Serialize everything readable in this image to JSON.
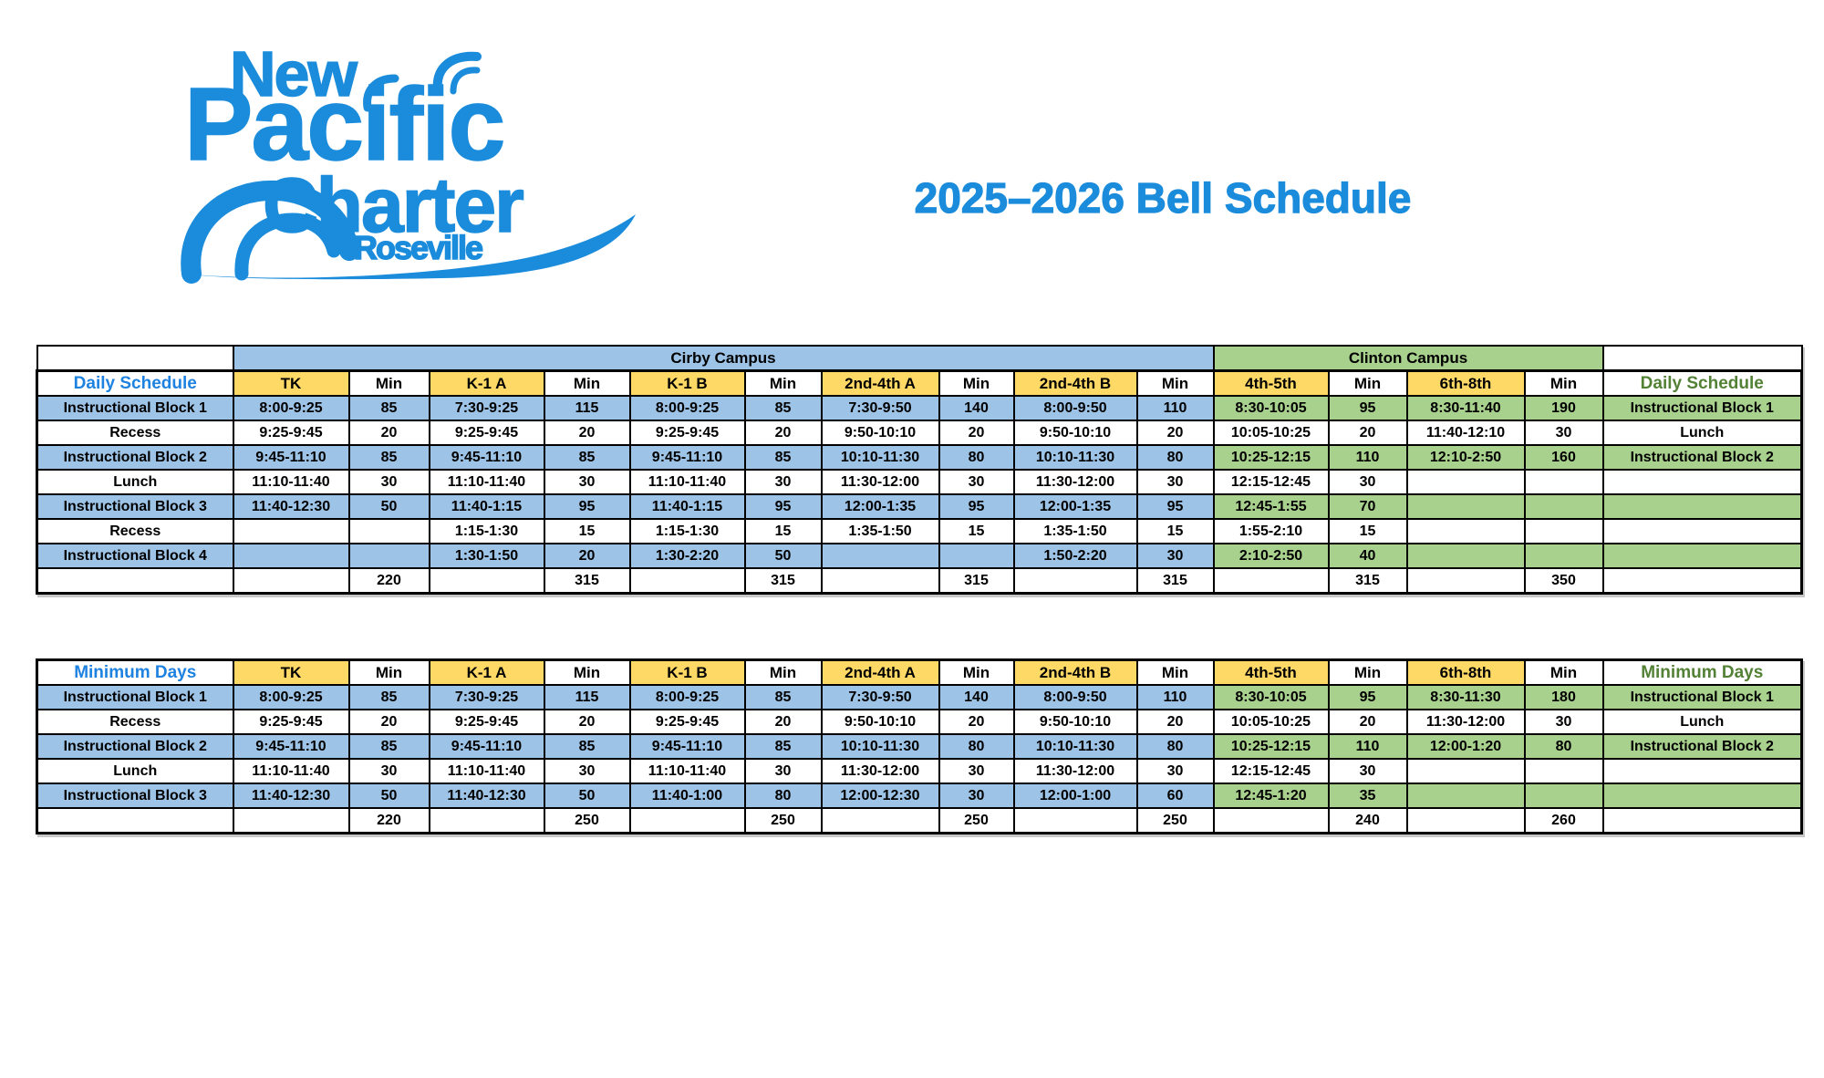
{
  "logo": {
    "line1": "New",
    "line2": "Pacific",
    "line3": "Charter",
    "sub": "Roseville"
  },
  "title": "2025–2026 Bell Schedule",
  "colors": {
    "brand_blue": "#1A8CDB",
    "label_blue": "#1E82E0",
    "label_green": "#538135",
    "cell_blue": "#9DC3E6",
    "cell_green": "#A9D18E",
    "cell_yellow": "#FFD966",
    "border_black": "#000000"
  },
  "campus_header": {
    "cirby": "Cirby Campus",
    "clinton": "Clinton Campus"
  },
  "tables": [
    {
      "name": "daily-schedule-table",
      "title_left": "Daily Schedule",
      "title_right": "Daily Schedule",
      "campus_row": true,
      "columns": [
        "TK",
        "Min",
        "K-1 A",
        "Min",
        "K-1 B",
        "Min",
        "2nd-4th A",
        "Min",
        "2nd-4th B",
        "Min",
        "4th-5th",
        "Min",
        "6th-8th",
        "Min"
      ],
      "rows": [
        {
          "label": "Instructional Block 1",
          "shade": true,
          "right_label": "Instructional Block 1",
          "cells": [
            "8:00-9:25",
            "85",
            "7:30-9:25",
            "115",
            "8:00-9:25",
            "85",
            "7:30-9:50",
            "140",
            "8:00-9:50",
            "110",
            "8:30-10:05",
            "95",
            "8:30-11:40",
            "190"
          ]
        },
        {
          "label": "Recess",
          "shade": false,
          "right_label": "Lunch",
          "cells": [
            "9:25-9:45",
            "20",
            "9:25-9:45",
            "20",
            "9:25-9:45",
            "20",
            "9:50-10:10",
            "20",
            "9:50-10:10",
            "20",
            "10:05-10:25",
            "20",
            "11:40-12:10",
            "30"
          ]
        },
        {
          "label": "Instructional Block 2",
          "shade": true,
          "right_label": "Instructional Block 2",
          "cells": [
            "9:45-11:10",
            "85",
            "9:45-11:10",
            "85",
            "9:45-11:10",
            "85",
            "10:10-11:30",
            "80",
            "10:10-11:30",
            "80",
            "10:25-12:15",
            "110",
            "12:10-2:50",
            "160"
          ]
        },
        {
          "label": "Lunch",
          "shade": false,
          "right_label": "",
          "cells": [
            "11:10-11:40",
            "30",
            "11:10-11:40",
            "30",
            "11:10-11:40",
            "30",
            "11:30-12:00",
            "30",
            "11:30-12:00",
            "30",
            "12:15-12:45",
            "30",
            "",
            ""
          ]
        },
        {
          "label": "Instructional Block 3",
          "shade": true,
          "right_label": "",
          "cells": [
            "11:40-12:30",
            "50",
            "11:40-1:15",
            "95",
            "11:40-1:15",
            "95",
            "12:00-1:35",
            "95",
            "12:00-1:35",
            "95",
            "12:45-1:55",
            "70",
            "",
            ""
          ]
        },
        {
          "label": "Recess",
          "shade": false,
          "right_label": "",
          "cells": [
            "",
            "",
            "1:15-1:30",
            "15",
            "1:15-1:30",
            "15",
            "1:35-1:50",
            "15",
            "1:35-1:50",
            "15",
            "1:55-2:10",
            "15",
            "",
            ""
          ]
        },
        {
          "label": "Instructional Block 4",
          "shade": true,
          "right_label": "",
          "cells": [
            "",
            "",
            "1:30-1:50",
            "20",
            "1:30-2:20",
            "50",
            "",
            "",
            "1:50-2:20",
            "30",
            "2:10-2:50",
            "40",
            "",
            ""
          ]
        },
        {
          "label": "",
          "shade": false,
          "right_label": "",
          "cells": [
            "",
            "220",
            "",
            "315",
            "",
            "315",
            "",
            "315",
            "",
            "315",
            "",
            "315",
            "",
            "350"
          ]
        }
      ]
    },
    {
      "name": "minimum-days-table",
      "title_left": "Minimum Days",
      "title_right": "Minimum Days",
      "campus_row": false,
      "columns": [
        "TK",
        "Min",
        "K-1 A",
        "Min",
        "K-1 B",
        "Min",
        "2nd-4th A",
        "Min",
        "2nd-4th B",
        "Min",
        "4th-5th",
        "Min",
        "6th-8th",
        "Min"
      ],
      "rows": [
        {
          "label": "Instructional Block 1",
          "shade": true,
          "right_label": "Instructional Block 1",
          "cells": [
            "8:00-9:25",
            "85",
            "7:30-9:25",
            "115",
            "8:00-9:25",
            "85",
            "7:30-9:50",
            "140",
            "8:00-9:50",
            "110",
            "8:30-10:05",
            "95",
            "8:30-11:30",
            "180"
          ]
        },
        {
          "label": "Recess",
          "shade": false,
          "right_label": "Lunch",
          "cells": [
            "9:25-9:45",
            "20",
            "9:25-9:45",
            "20",
            "9:25-9:45",
            "20",
            "9:50-10:10",
            "20",
            "9:50-10:10",
            "20",
            "10:05-10:25",
            "20",
            "11:30-12:00",
            "30"
          ]
        },
        {
          "label": "Instructional Block 2",
          "shade": true,
          "right_label": "Instructional Block 2",
          "cells": [
            "9:45-11:10",
            "85",
            "9:45-11:10",
            "85",
            "9:45-11:10",
            "85",
            "10:10-11:30",
            "80",
            "10:10-11:30",
            "80",
            "10:25-12:15",
            "110",
            "12:00-1:20",
            "80"
          ]
        },
        {
          "label": "Lunch",
          "shade": false,
          "right_label": "",
          "cells": [
            "11:10-11:40",
            "30",
            "11:10-11:40",
            "30",
            "11:10-11:40",
            "30",
            "11:30-12:00",
            "30",
            "11:30-12:00",
            "30",
            "12:15-12:45",
            "30",
            "",
            ""
          ]
        },
        {
          "label": "Instructional Block 3",
          "shade": true,
          "right_label": "",
          "cells": [
            "11:40-12:30",
            "50",
            "11:40-12:30",
            "50",
            "11:40-1:00",
            "80",
            "12:00-12:30",
            "30",
            "12:00-1:00",
            "60",
            "12:45-1:20",
            "35",
            "",
            ""
          ]
        },
        {
          "label": "",
          "shade": false,
          "right_label": "",
          "cells": [
            "",
            "220",
            "",
            "250",
            "",
            "250",
            "",
            "250",
            "",
            "250",
            "",
            "240",
            "",
            "260"
          ]
        }
      ]
    }
  ]
}
